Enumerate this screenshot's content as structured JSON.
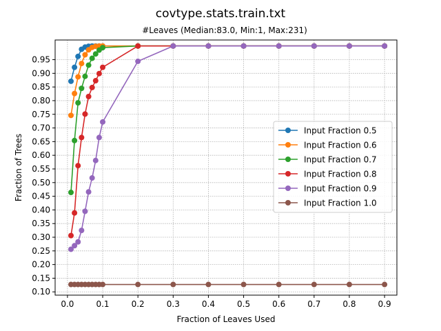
{
  "chart_data": {
    "type": "line",
    "title": "covtype.stats.train.txt",
    "subtitle": "#Leaves (Median:83.0, Min:1, Max:231)",
    "xlabel": "Fraction of Leaves Used",
    "ylabel": "Fraction of Trees",
    "xlim": [
      -0.035,
      0.935
    ],
    "ylim": [
      0.088,
      1.022
    ],
    "xticks": [
      0.0,
      0.1,
      0.2,
      0.3,
      0.4,
      0.5,
      0.6,
      0.7,
      0.8,
      0.9
    ],
    "xtick_labels": [
      "0.0",
      "0.1",
      "0.2",
      "0.3",
      "0.4",
      "0.5",
      "0.6",
      "0.7",
      "0.8",
      "0.9"
    ],
    "yticks": [
      0.1,
      0.15,
      0.2,
      0.25,
      0.3,
      0.35,
      0.4,
      0.45,
      0.5,
      0.55,
      0.6,
      0.65,
      0.7,
      0.75,
      0.8,
      0.85,
      0.9,
      0.95
    ],
    "ytick_labels": [
      "0.10",
      "0.15",
      "0.20",
      "0.25",
      "0.30",
      "0.35",
      "0.40",
      "0.45",
      "0.50",
      "0.55",
      "0.60",
      "0.65",
      "0.70",
      "0.75",
      "0.80",
      "0.85",
      "0.90",
      "0.95"
    ],
    "grid": true,
    "legend_position": "center-right",
    "series": [
      {
        "name": "Input Fraction 0.5",
        "color": "#1f77b4",
        "x": [
          0.01,
          0.02,
          0.03,
          0.04,
          0.05,
          0.06,
          0.07,
          0.08,
          0.09,
          0.1,
          0.2,
          0.3,
          0.4,
          0.5,
          0.6,
          0.7,
          0.8,
          0.9
        ],
        "y": [
          0.871,
          0.922,
          0.962,
          0.988,
          0.996,
          0.999,
          1.0,
          1.0,
          1.0,
          1.0,
          1.0,
          1.0,
          1.0,
          1.0,
          1.0,
          1.0,
          1.0,
          1.0
        ]
      },
      {
        "name": "Input Fraction 0.6",
        "color": "#ff7f0e",
        "x": [
          0.01,
          0.02,
          0.03,
          0.04,
          0.05,
          0.06,
          0.07,
          0.08,
          0.09,
          0.1,
          0.2,
          0.3,
          0.4,
          0.5,
          0.6,
          0.7,
          0.8,
          0.9
        ],
        "y": [
          0.746,
          0.826,
          0.887,
          0.936,
          0.968,
          0.986,
          0.995,
          0.999,
          1.0,
          1.0,
          1.0,
          1.0,
          1.0,
          1.0,
          1.0,
          1.0,
          1.0,
          1.0
        ]
      },
      {
        "name": "Input Fraction 0.7",
        "color": "#2ca02c",
        "x": [
          0.01,
          0.02,
          0.03,
          0.04,
          0.05,
          0.06,
          0.07,
          0.08,
          0.09,
          0.1,
          0.2,
          0.3,
          0.4,
          0.5,
          0.6,
          0.7,
          0.8,
          0.9
        ],
        "y": [
          0.464,
          0.654,
          0.792,
          0.845,
          0.889,
          0.93,
          0.955,
          0.971,
          0.985,
          0.994,
          1.0,
          1.0,
          1.0,
          1.0,
          1.0,
          1.0,
          1.0,
          1.0
        ]
      },
      {
        "name": "Input Fraction 0.8",
        "color": "#d62728",
        "x": [
          0.01,
          0.02,
          0.03,
          0.04,
          0.05,
          0.06,
          0.07,
          0.08,
          0.09,
          0.1,
          0.2,
          0.3,
          0.4,
          0.5,
          0.6,
          0.7,
          0.8,
          0.9
        ],
        "y": [
          0.306,
          0.389,
          0.562,
          0.665,
          0.751,
          0.815,
          0.848,
          0.873,
          0.899,
          0.922,
          1.0,
          1.0,
          1.0,
          1.0,
          1.0,
          1.0,
          1.0,
          1.0
        ]
      },
      {
        "name": "Input Fraction 0.9",
        "color": "#9467bd",
        "x": [
          0.01,
          0.02,
          0.03,
          0.04,
          0.05,
          0.06,
          0.07,
          0.08,
          0.09,
          0.1,
          0.2,
          0.3,
          0.4,
          0.5,
          0.6,
          0.7,
          0.8,
          0.9
        ],
        "y": [
          0.256,
          0.269,
          0.283,
          0.325,
          0.395,
          0.466,
          0.517,
          0.581,
          0.665,
          0.722,
          0.944,
          1.0,
          1.0,
          1.0,
          1.0,
          1.0,
          1.0,
          1.0
        ]
      },
      {
        "name": "Input Fraction 1.0",
        "color": "#8c564b",
        "x": [
          0.01,
          0.02,
          0.03,
          0.04,
          0.05,
          0.06,
          0.07,
          0.08,
          0.09,
          0.1,
          0.2,
          0.3,
          0.4,
          0.5,
          0.6,
          0.7,
          0.8,
          0.9
        ],
        "y": [
          0.127,
          0.127,
          0.127,
          0.127,
          0.127,
          0.127,
          0.127,
          0.127,
          0.127,
          0.127,
          0.127,
          0.127,
          0.127,
          0.127,
          0.127,
          0.127,
          0.127,
          0.127
        ]
      }
    ]
  }
}
